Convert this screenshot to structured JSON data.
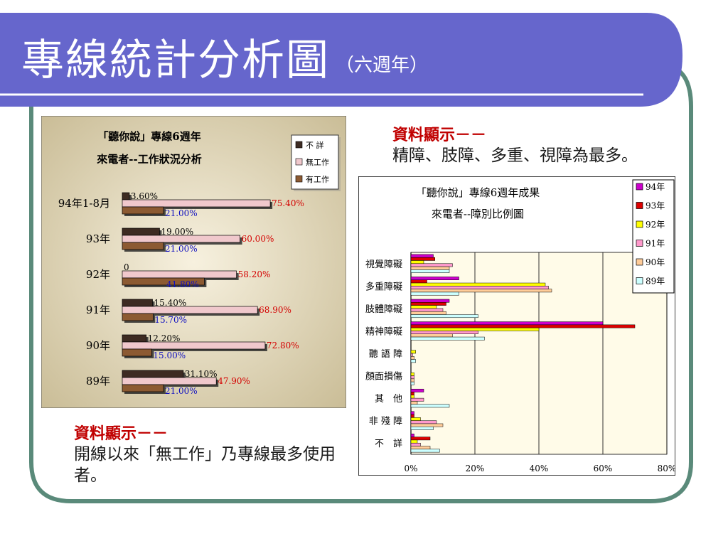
{
  "slide": {
    "title": "專線統計分析圖",
    "subtitle": "（六週年）",
    "colors": {
      "header": "#6666cc",
      "frame": "#5a8a7a",
      "accent": "#c00000"
    }
  },
  "note_right": {
    "heading": "資料顯示－－",
    "body": "精障、肢障、多重、視障為最多。"
  },
  "note_left": {
    "heading": "資料顯示－－",
    "body": "開線以來「無工作」乃專線最多使用者。"
  },
  "chart_data": [
    {
      "type": "bar",
      "orientation": "horizontal",
      "title": [
        "「聽你說」專線6週年",
        "來電者--工作狀況分析"
      ],
      "categories": [
        "94年1-8月",
        "93年",
        "92年",
        "91年",
        "90年",
        "89年"
      ],
      "series": [
        {
          "name": "不 詳",
          "color": "#3d2b22",
          "values": [
            3.6,
            19.0,
            0,
            15.4,
            12.2,
            31.1
          ],
          "labels": [
            "3.60%",
            "19.00%",
            "0",
            "15.40%",
            "12.20%",
            "31.10%"
          ],
          "label_color": "#000000"
        },
        {
          "name": "無工作",
          "color": "#f0c8cc",
          "values": [
            75.4,
            60.0,
            58.2,
            68.9,
            72.8,
            47.9
          ],
          "labels": [
            "75.40%",
            "60.00%",
            "58.20%",
            "68.90%",
            "72.80%",
            "47.90%"
          ],
          "label_color": "#d40000"
        },
        {
          "name": "有工作",
          "color": "#8c5a32",
          "values": [
            21.0,
            21.0,
            41.8,
            15.7,
            15.0,
            21.0
          ],
          "labels": [
            "21.00%",
            "21.00%",
            "41.80%",
            "15.70%",
            "15.00%",
            "21.00%"
          ],
          "label_color": "#1010c0"
        }
      ],
      "legend": "top-right",
      "background": "#d9ceb0"
    },
    {
      "type": "bar",
      "orientation": "horizontal",
      "title": [
        "「聽你說」專線6週年成果",
        "來電者--障別比例圖"
      ],
      "categories": [
        "視覺障礙",
        "多重障礙",
        "肢體障礙",
        "精神障礙",
        "聽 語 障",
        "顏面損傷",
        "其　他",
        "非 殘 障",
        "不　詳"
      ],
      "x_ticks": [
        "0%",
        "20%",
        "40%",
        "60%",
        "80%"
      ],
      "xlim": [
        0,
        80
      ],
      "series": [
        {
          "name": "94年",
          "color": "#cc00cc",
          "values": [
            7,
            15,
            12,
            60,
            0,
            0,
            4,
            1,
            1
          ]
        },
        {
          "name": "93年",
          "color": "#dd0000",
          "values": [
            7.5,
            5,
            11,
            70,
            0,
            0,
            1,
            1,
            6
          ]
        },
        {
          "name": "92年",
          "color": "#ffff00",
          "values": [
            4,
            42,
            8,
            40,
            1.5,
            1,
            1,
            3,
            2
          ]
        },
        {
          "name": "91年",
          "color": "#ff99cc",
          "values": [
            13,
            43,
            10,
            21,
            0.5,
            1,
            4,
            8,
            3
          ]
        },
        {
          "name": "90年",
          "color": "#ffcc99",
          "values": [
            12,
            44,
            11,
            13,
            1,
            1,
            2,
            10,
            6
          ]
        },
        {
          "name": "89年",
          "color": "#ccffff",
          "values": [
            12,
            15,
            21,
            23,
            1.5,
            1,
            12,
            7,
            9
          ]
        }
      ],
      "legend": "top-right",
      "grid": true,
      "plot_background": "#fffbe8"
    }
  ]
}
